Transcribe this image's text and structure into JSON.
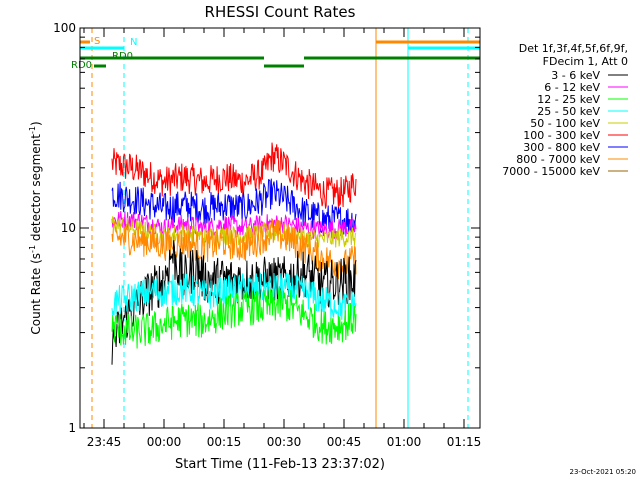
{
  "chart_data": {
    "type": "line",
    "title": "RHESSI Count Rates",
    "xlabel": "Start Time (11-Feb-13 23:37:02)",
    "ylabel_main": "Count Rate (s",
    "ylabel_sup1": "-1",
    "ylabel_mid": " detector segment",
    "ylabel_sup2": "-1",
    "ylabel_end": ")",
    "yscale": "log",
    "ylim": [
      1,
      100
    ],
    "xlim_minutes": [
      -21,
      79
    ],
    "x_ticks": [
      {
        "m": -15,
        "label": "23:45"
      },
      {
        "m": 0,
        "label": "00:00"
      },
      {
        "m": 15,
        "label": "00:15"
      },
      {
        "m": 30,
        "label": "00:30"
      },
      {
        "m": 45,
        "label": "00:45"
      },
      {
        "m": 60,
        "label": "01:00"
      },
      {
        "m": 75,
        "label": "01:15"
      }
    ],
    "y_ticks": [
      {
        "v": 1,
        "label": "1"
      },
      {
        "v": 10,
        "label": "10"
      },
      {
        "v": 100,
        "label": "100"
      }
    ],
    "legend": {
      "header1": "Det 1f,3f,4f,5f,6f,9f,",
      "header2": "FDecim 1, Att 0",
      "entries": [
        {
          "label": "3 - 6 keV",
          "color": "#000000"
        },
        {
          "label": "6 - 12 keV",
          "color": "#ff00ff"
        },
        {
          "label": "12 - 25 keV",
          "color": "#00ff00"
        },
        {
          "label": "25 - 50 keV",
          "color": "#00ffff"
        },
        {
          "label": "50 - 100 keV",
          "color": "#cccc00"
        },
        {
          "label": "100 - 300 keV",
          "color": "#ff0000"
        },
        {
          "label": "300 - 800 keV",
          "color": "#0000ff"
        },
        {
          "label": "800 - 7000 keV",
          "color": "#ff8800"
        },
        {
          "label": "7000 - 15000 keV",
          "color": "#996600"
        }
      ]
    },
    "series": [
      {
        "color": "#ff0000",
        "x": [
          -13,
          -8,
          -3,
          0,
          5,
          10,
          15,
          20,
          25,
          27,
          30,
          35,
          40,
          45,
          48
        ],
        "y": [
          21,
          20,
          18,
          17,
          18,
          17,
          18,
          17,
          19,
          23,
          21,
          17,
          15,
          15,
          17
        ],
        "noise": 0.08
      },
      {
        "color": "#0000ff",
        "x": [
          -13,
          -8,
          -3,
          0,
          5,
          10,
          15,
          20,
          25,
          27,
          30,
          35,
          40,
          45,
          48
        ],
        "y": [
          15,
          14,
          13,
          12.5,
          13,
          12.5,
          13,
          12.5,
          14,
          15,
          14,
          12,
          11,
          11,
          11
        ],
        "noise": 0.08
      },
      {
        "color": "#ff00ff",
        "x": [
          -13,
          -8,
          -3,
          0,
          5,
          10,
          15,
          20,
          25,
          30,
          35,
          40,
          45,
          48
        ],
        "y": [
          11,
          11,
          10.5,
          10,
          10.5,
          10,
          10.5,
          10,
          10.5,
          10.5,
          10,
          9.8,
          10,
          10
        ],
        "noise": 0.05
      },
      {
        "color": "#cccc00",
        "x": [
          -13,
          -8,
          -3,
          0,
          5,
          10,
          15,
          20,
          25,
          30,
          35,
          40,
          45,
          48
        ],
        "y": [
          10.5,
          10,
          9.5,
          9,
          9.5,
          9,
          9.2,
          9.2,
          9.5,
          9.5,
          9,
          8.8,
          9,
          9
        ],
        "noise": 0.05
      },
      {
        "color": "#ff8800",
        "x": [
          -13,
          -8,
          -3,
          0,
          5,
          10,
          15,
          20,
          25,
          27,
          30,
          35,
          40,
          45,
          48
        ],
        "y": [
          9,
          8.8,
          8.5,
          8.2,
          8.5,
          8,
          8.5,
          8,
          9,
          9.5,
          9,
          8,
          7,
          6.5,
          7
        ],
        "noise": 0.08
      },
      {
        "color": "#000000",
        "x": [
          -13,
          -10,
          -5,
          0,
          2,
          5,
          8,
          10,
          15,
          20,
          25,
          30,
          35,
          40,
          45,
          48
        ],
        "y": [
          2.6,
          3.5,
          4.5,
          5.5,
          7.5,
          5.5,
          6.5,
          5.5,
          5.5,
          5.5,
          5.5,
          5.5,
          6,
          5.2,
          5.5,
          5.5
        ],
        "noise": 0.12
      },
      {
        "color": "#00ffff",
        "x": [
          -13,
          -8,
          -3,
          0,
          5,
          10,
          15,
          20,
          25,
          30,
          35,
          40,
          45,
          48
        ],
        "y": [
          4.2,
          4.5,
          4.8,
          4.8,
          5,
          4.6,
          4.8,
          5,
          5,
          5,
          4.8,
          4.3,
          4,
          4.2
        ],
        "noise": 0.08
      },
      {
        "color": "#00ff00",
        "x": [
          -13,
          -8,
          -3,
          0,
          5,
          10,
          15,
          20,
          25,
          30,
          35,
          40,
          45,
          48
        ],
        "y": [
          3.2,
          3,
          3.1,
          3.3,
          3.5,
          3.4,
          3.8,
          4,
          4,
          4.2,
          3.7,
          3.2,
          3.3,
          3.6
        ],
        "noise": 0.09
      }
    ],
    "state_bars": [
      {
        "name": "S",
        "label": "S",
        "color": "#ff8800",
        "y": 42,
        "segments": [
          [
            -21,
            -18.5
          ],
          [
            53,
            79
          ]
        ]
      },
      {
        "name": "N",
        "label": "N",
        "color": "#00ffff",
        "y": 48,
        "segments": [
          [
            -21,
            -10
          ],
          [
            61,
            79
          ]
        ]
      },
      {
        "name": "RD0",
        "label": "RD0",
        "color": "#008000",
        "y": 58,
        "segments": [
          [
            -21,
            25
          ],
          [
            35,
            79
          ]
        ]
      },
      {
        "name": "RD0-dip",
        "label": "",
        "color": "#008000",
        "y": 66,
        "segments": [
          [
            -17.5,
            -14.5
          ],
          [
            25,
            35
          ]
        ]
      }
    ],
    "bar_labels": [
      {
        "text": "S",
        "color": "#ff8800",
        "m": -18
      },
      {
        "text": "N",
        "color": "#00ffff",
        "m": -9
      },
      {
        "text": "RD0",
        "color": "#008000",
        "m": -13.5
      },
      {
        "text": "RD0",
        "color": "#008000",
        "m": -21
      }
    ],
    "vlines": [
      {
        "m": -21,
        "color": "#00ffff",
        "dashed": false
      },
      {
        "m": -18,
        "color": "#ff8800",
        "dashed": true
      },
      {
        "m": -10,
        "color": "#00ffff",
        "dashed": true
      },
      {
        "m": 53,
        "color": "#ff8800",
        "dashed": false
      },
      {
        "m": 61,
        "color": "#00ffff",
        "dashed": false
      },
      {
        "m": 76,
        "color": "#ff8800",
        "dashed": true
      },
      {
        "m": 76,
        "color": "#00ffff",
        "dashed": true
      }
    ],
    "footer_date": "23-Oct-2021 05:20"
  }
}
